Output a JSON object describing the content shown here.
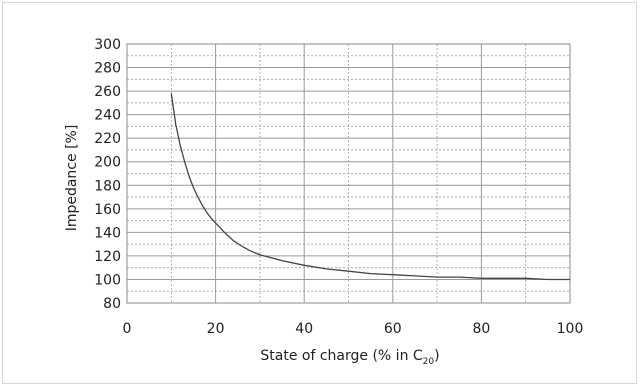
{
  "chart_data": {
    "type": "line",
    "title": "",
    "xlabel": "State of charge (% in C",
    "xlabel_sub": "20",
    "xlabel_tail": ")",
    "ylabel": "Impedance [%]",
    "xlim": [
      0,
      100
    ],
    "ylim": [
      80,
      300
    ],
    "x_ticks": [
      "0",
      "20",
      "40",
      "60",
      "80",
      "100"
    ],
    "y_ticks": [
      "80",
      "100",
      "120",
      "140",
      "160",
      "180",
      "200",
      "220",
      "240",
      "260",
      "280",
      "300"
    ],
    "grid": true,
    "line_color": "#444444",
    "grid_color": "#9a9a9a",
    "series": [
      {
        "x": [
          10,
          11,
          12,
          13,
          14,
          15,
          16,
          17,
          18,
          19,
          20,
          22,
          24,
          26,
          28,
          30,
          35,
          40,
          45,
          50,
          55,
          60,
          65,
          70,
          75,
          80,
          85,
          90,
          95,
          100
        ],
        "values": [
          258,
          232,
          214,
          200,
          188,
          178,
          170,
          163,
          157,
          152,
          148,
          140,
          133,
          128,
          124,
          121,
          116,
          112,
          109,
          107,
          105,
          104,
          103,
          102,
          102,
          101,
          101,
          101,
          100,
          100
        ]
      }
    ]
  }
}
